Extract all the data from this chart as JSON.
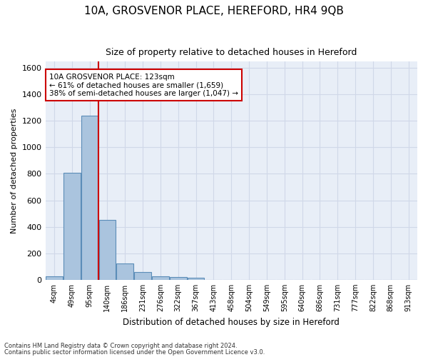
{
  "title": "10A, GROSVENOR PLACE, HEREFORD, HR4 9QB",
  "subtitle": "Size of property relative to detached houses in Hereford",
  "xlabel": "Distribution of detached houses by size in Hereford",
  "ylabel": "Number of detached properties",
  "footnote1": "Contains HM Land Registry data © Crown copyright and database right 2024.",
  "footnote2": "Contains public sector information licensed under the Open Government Licence v3.0.",
  "bar_categories": [
    "4sqm",
    "49sqm",
    "95sqm",
    "140sqm",
    "186sqm",
    "231sqm",
    "276sqm",
    "322sqm",
    "367sqm",
    "413sqm",
    "458sqm",
    "504sqm",
    "549sqm",
    "595sqm",
    "640sqm",
    "686sqm",
    "731sqm",
    "777sqm",
    "822sqm",
    "868sqm",
    "913sqm"
  ],
  "bar_values": [
    25,
    808,
    1240,
    453,
    125,
    58,
    27,
    18,
    13,
    0,
    0,
    0,
    0,
    0,
    0,
    0,
    0,
    0,
    0,
    0,
    0
  ],
  "bar_color": "#aac4de",
  "bar_edge_color": "#5b8db8",
  "ylim": [
    0,
    1650
  ],
  "yticks": [
    0,
    200,
    400,
    600,
    800,
    1000,
    1200,
    1400,
    1600
  ],
  "grid_color": "#d0d8e8",
  "background_color": "#e8eef7",
  "annotation_text": "10A GROSVENOR PLACE: 123sqm\n← 61% of detached houses are smaller (1,659)\n38% of semi-detached houses are larger (1,047) →",
  "annotation_box_color": "#ffffff",
  "annotation_box_edge": "#cc0000",
  "vline_color": "#cc0000",
  "vline_x_index": 2.5
}
